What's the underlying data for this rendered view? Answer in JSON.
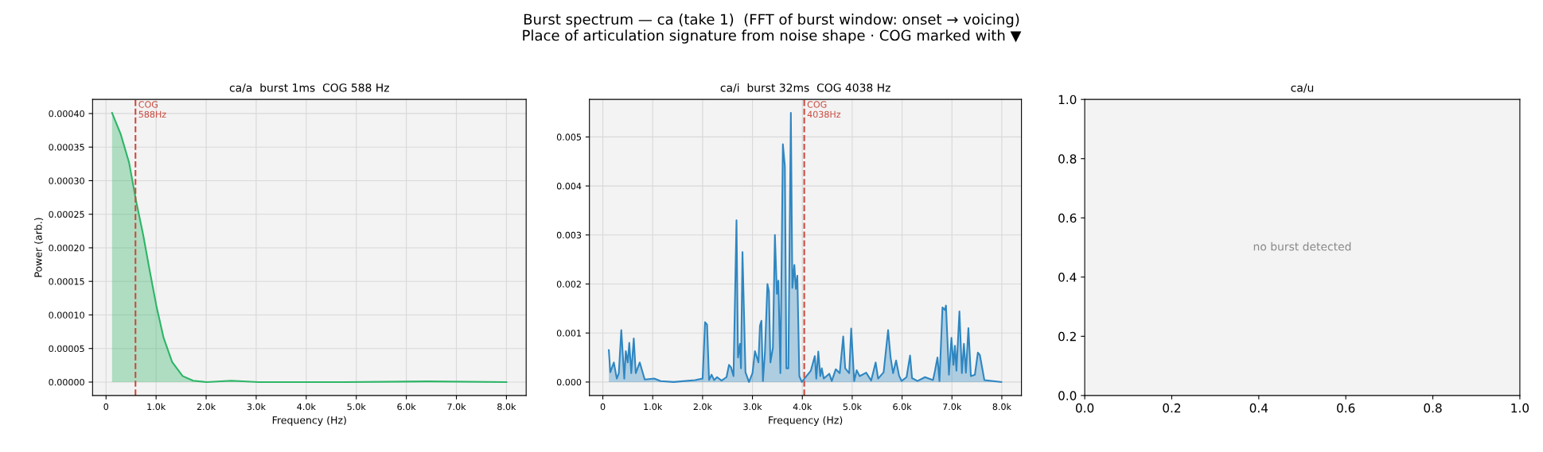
{
  "chart_data": [
    {
      "type": "area",
      "title": "ca/a  burst 1ms  COG 588 Hz",
      "xlabel": "Frequency (Hz)",
      "ylabel": "Power (arb.)",
      "annotations": [
        "Burst spectrum — ca (take 1)  (FFT of burst window: onset → voicing)\nPlace of articulation signature from noise shape · COG marked with ▼"
      ],
      "x": [
        120,
        290,
        460,
        600,
        740,
        880,
        1010,
        1150,
        1320,
        1530,
        1740,
        2010,
        2500,
        3050,
        4770,
        6430,
        8000
      ],
      "series": [
        {
          "color": "#2db567",
          "values": [
            0.000401,
            0.00037,
            0.000327,
            0.00027,
            0.00022,
            0.000163,
            0.000112,
            6.6e-05,
            3e-05,
            9e-06,
            2e-06,
            0.0,
            2e-06,
            0.0,
            0.0,
            1e-06,
            0.0
          ]
        }
      ],
      "xlim": [
        -269,
        8394
      ],
      "ylim": [
        -2e-05,
        0.000421
      ],
      "xticks": [
        0,
        {
          "value": 1000,
          "label": "1.0k"
        },
        {
          "value": 2000,
          "label": "2.0k"
        },
        {
          "value": 3000,
          "label": "3.0k"
        },
        {
          "value": 4000,
          "label": "4.0k"
        },
        {
          "value": 5000,
          "label": "5.0k"
        },
        {
          "value": 6000,
          "label": "6.0k"
        },
        {
          "value": 7000,
          "label": "7.0k"
        },
        {
          "value": 8000,
          "label": "8.0k"
        }
      ],
      "yticks": [
        {
          "value": 0,
          "label": "0.00000"
        },
        {
          "value": 5e-05,
          "label": "0.00005"
        },
        {
          "value": 0.0001,
          "label": "0.00010"
        },
        {
          "value": 0.00015,
          "label": "0.00015"
        },
        {
          "value": 0.0002,
          "label": "0.00020"
        },
        {
          "value": 0.00025,
          "label": "0.00025"
        },
        {
          "value": 0.0003,
          "label": "0.00030"
        },
        {
          "value": 0.00035,
          "label": "0.00035"
        },
        {
          "value": 0.0004,
          "label": "0.00040"
        }
      ],
      "ref_lines": [
        {
          "axis": "x",
          "value": 588,
          "label": "COG\n588Hz",
          "color": "#cc4a3f",
          "line_style": "dashed"
        }
      ],
      "grid": true
    },
    {
      "type": "area",
      "title": "ca/i  burst 32ms  COG 4038 Hz",
      "xlabel": "Frequency (Hz)",
      "x": [
        120,
        150,
        220,
        280,
        320,
        370,
        430,
        460,
        500,
        530,
        570,
        620,
        660,
        740,
        840,
        1030,
        1160,
        1420,
        1850,
        2000,
        2050,
        2090,
        2130,
        2180,
        2230,
        2290,
        2380,
        2480,
        2530,
        2570,
        2620,
        2680,
        2710,
        2750,
        2770,
        2800,
        2860,
        2930,
        3000,
        3050,
        3120,
        3150,
        3180,
        3210,
        3250,
        3300,
        3330,
        3360,
        3410,
        3450,
        3490,
        3520,
        3560,
        3610,
        3650,
        3680,
        3720,
        3770,
        3800,
        3840,
        3870,
        3900,
        3940,
        3990,
        4090,
        4170,
        4250,
        4280,
        4320,
        4360,
        4390,
        4430,
        4540,
        4590,
        4670,
        4750,
        4820,
        4860,
        4940,
        4980,
        5040,
        5090,
        5150,
        5280,
        5380,
        5470,
        5520,
        5630,
        5720,
        5770,
        5820,
        5880,
        5940,
        5990,
        6090,
        6160,
        6200,
        6310,
        6460,
        6620,
        6660,
        6710,
        6750,
        6810,
        6860,
        6880,
        6940,
        6990,
        7030,
        7060,
        7090,
        7150,
        7200,
        7240,
        7280,
        7330,
        7380,
        7460,
        7520,
        7560,
        7650,
        7990
      ],
      "series": [
        {
          "color": "#2e86c1",
          "values": [
            0.00065,
            0.0002,
            0.0004,
            7e-05,
            0.00018,
            0.00106,
            7e-05,
            0.00063,
            0.0004,
            0.0008,
            0.00018,
            0.00089,
            0.00018,
            0.0004,
            5e-05,
            7e-05,
            2e-05,
            0.0,
            4e-05,
            7e-05,
            0.00122,
            0.00117,
            4e-05,
            0.00015,
            4e-05,
            0.0001,
            3e-05,
            0.0001,
            0.00035,
            0.0003,
            0.00012,
            0.0033,
            0.0005,
            0.00078,
            0.00028,
            0.00265,
            0.0002,
            0.0,
            0.00018,
            0.00063,
            0.0004,
            0.00115,
            0.00125,
            2e-05,
            0.0006,
            0.002,
            0.00185,
            0.0004,
            0.0007,
            0.003,
            0.0018,
            0.00207,
            0.00018,
            0.00485,
            0.0044,
            0.00028,
            0.00028,
            0.00549,
            0.00192,
            0.00239,
            0.0019,
            0.00217,
            0.00012,
            0.0,
            0.00013,
            0.00023,
            0.00053,
            7e-05,
            0.00062,
            0.00012,
            0.00028,
            7e-05,
            0.00017,
            2e-05,
            0.00026,
            0.00018,
            0.00093,
            0.00028,
            0.00018,
            0.00109,
            2e-05,
            0.00024,
            0.00012,
            0.00019,
            3e-05,
            0.0004,
            7e-05,
            0.0002,
            0.00106,
            0.0005,
            0.00018,
            0.00044,
            0.00013,
            2e-05,
            0.0001,
            0.00054,
            8e-05,
            2e-05,
            0.0001,
            4e-05,
            0.00023,
            0.0005,
            2e-05,
            0.00152,
            0.00147,
            0.00156,
            0.00015,
            0.0009,
            0.00035,
            0.00074,
            0.00023,
            0.00144,
            0.00018,
            0.00078,
            0.00019,
            0.0011,
            0.00012,
            0.00015,
            0.0006,
            0.00055,
            4e-05,
            0.0
          ]
        }
      ],
      "xlim": [
        -269,
        8394
      ],
      "ylim": [
        -0.000275,
        0.005765
      ],
      "xticks": [
        0,
        {
          "value": 1000,
          "label": "1.0k"
        },
        {
          "value": 2000,
          "label": "2.0k"
        },
        {
          "value": 3000,
          "label": "3.0k"
        },
        {
          "value": 4000,
          "label": "4.0k"
        },
        {
          "value": 5000,
          "label": "5.0k"
        },
        {
          "value": 6000,
          "label": "6.0k"
        },
        {
          "value": 7000,
          "label": "7.0k"
        },
        {
          "value": 8000,
          "label": "8.0k"
        }
      ],
      "yticks": [
        {
          "value": 0,
          "label": "0.000"
        },
        {
          "value": 0.001,
          "label": "0.001"
        },
        {
          "value": 0.002,
          "label": "0.002"
        },
        {
          "value": 0.003,
          "label": "0.003"
        },
        {
          "value": 0.004,
          "label": "0.004"
        },
        {
          "value": 0.005,
          "label": "0.005"
        }
      ],
      "ref_lines": [
        {
          "axis": "x",
          "value": 4038,
          "label": "COG\n4038Hz",
          "color": "#cc4a3f",
          "line_style": "dashed"
        }
      ],
      "grid": true
    },
    {
      "type": "line",
      "title": "ca/u",
      "annotations": [
        "no burst detected"
      ],
      "xlim": [
        0,
        1
      ],
      "ylim": [
        0,
        1
      ],
      "xticks": [
        {
          "value": 0,
          "label": "0.0"
        },
        {
          "value": 0.2,
          "label": "0.2"
        },
        {
          "value": 0.4,
          "label": "0.4"
        },
        {
          "value": 0.6,
          "label": "0.6"
        },
        {
          "value": 0.8,
          "label": "0.8"
        },
        {
          "value": 1,
          "label": "1.0"
        }
      ],
      "yticks": [
        {
          "value": 0,
          "label": "0.0"
        },
        {
          "value": 0.2,
          "label": "0.2"
        },
        {
          "value": 0.4,
          "label": "0.4"
        },
        {
          "value": 0.6,
          "label": "0.6"
        },
        {
          "value": 0.8,
          "label": "0.8"
        },
        {
          "value": 1,
          "label": "1.0"
        }
      ]
    }
  ]
}
